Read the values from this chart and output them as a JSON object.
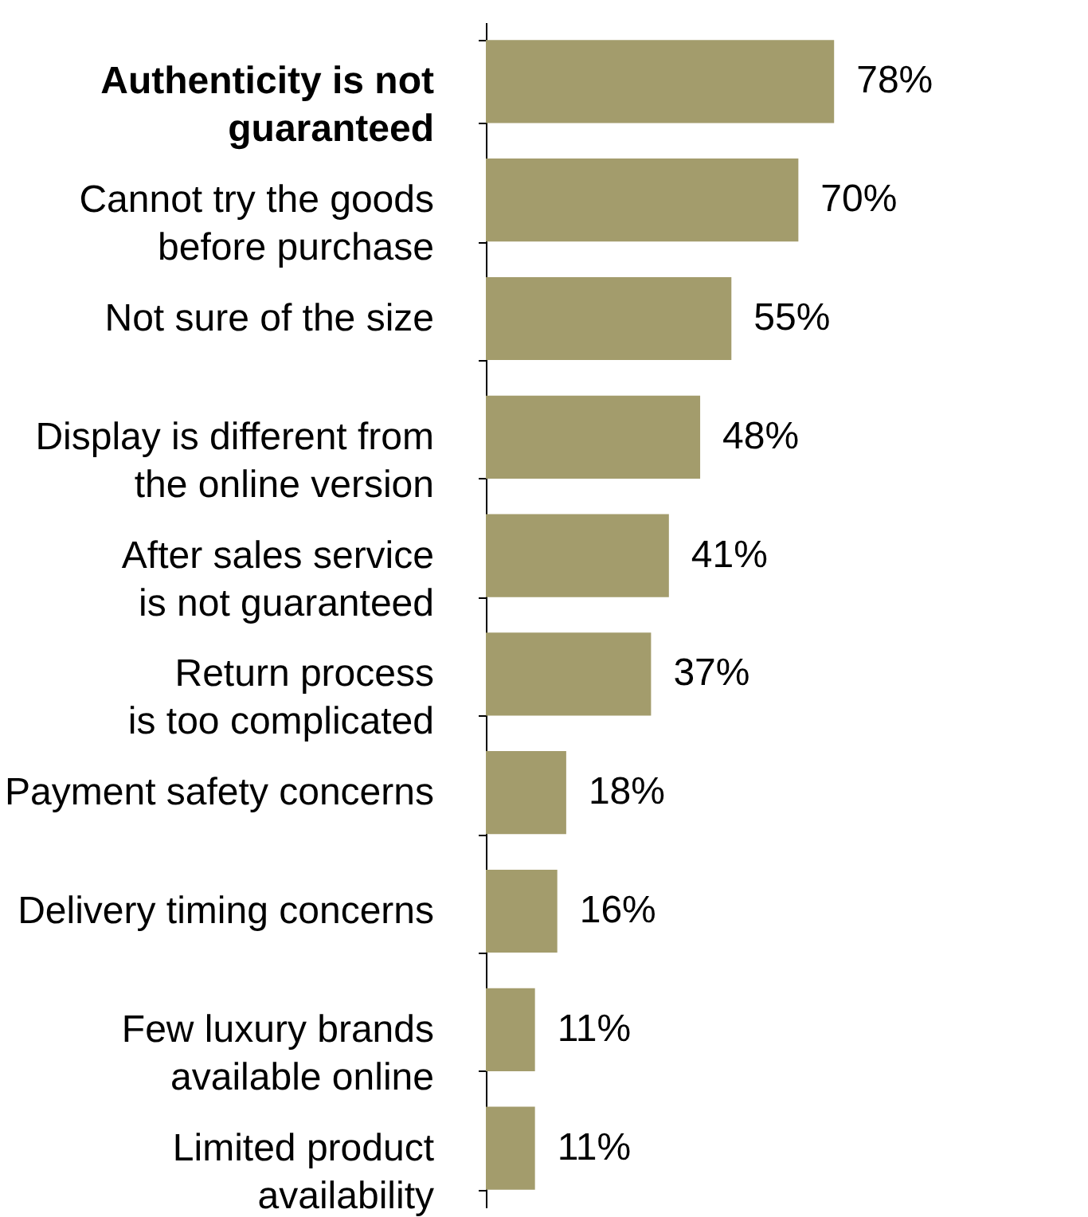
{
  "chart_data": {
    "type": "bar",
    "orientation": "horizontal",
    "categories": [
      "Authenticity is not\nguaranteed",
      "Cannot try the goods\nbefore purchase",
      "Not sure of the size",
      "Display is different from\nthe online version",
      "After sales service\nis not guaranteed",
      "Return process\nis too complicated",
      "Payment safety concerns",
      "Delivery timing concerns",
      "Few luxury brands\navailable online",
      "Limited product\navailability"
    ],
    "values": [
      78,
      70,
      55,
      48,
      41,
      37,
      18,
      16,
      11,
      11
    ],
    "value_labels": [
      "78%",
      "70%",
      "55%",
      "48%",
      "41%",
      "37%",
      "18%",
      "16%",
      "11%",
      "11%"
    ],
    "color": "#a39c6c"
  }
}
